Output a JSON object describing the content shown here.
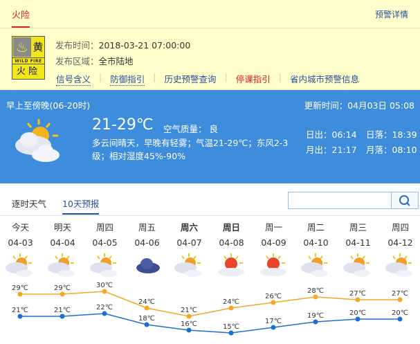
{
  "warning": {
    "tab": "火险",
    "detail_link": "预警详情",
    "badge": {
      "level": "黄",
      "en": "WILD FIRE",
      "name": "火险"
    },
    "publish_time_label": "发布时间：",
    "publish_time": "2018-03-21 07:00:00",
    "area_label": "发布区域：",
    "area": "全市陆地",
    "links": [
      "信号含义",
      "防御指引",
      "历史预警查询",
      "停课指引",
      "省内城市预警信息"
    ]
  },
  "current": {
    "period": "早上至傍晚(06-20时)",
    "update": "更新时间：04月03日 05:08",
    "temp": "21-29℃",
    "air_quality": "空气质量： 良",
    "description": "多云间晴天，早晚有轻雾；气温21-29℃；东风2-3级；相对湿度45%-90%",
    "sunrise": "日出：06:14",
    "sunset": "日落：18:39",
    "moonrise": "月出：21:17",
    "moonset": "月落：08:10",
    "icon": "partly-cloudy-icon"
  },
  "forecast_tabs": [
    "逐时天气",
    "10天预报"
  ],
  "search": {
    "placeholder": "",
    "icon": "search-icon"
  },
  "colors": {
    "high": "#f5a623",
    "low": "#1a6fd0",
    "blue_panel": "#3e8ddc",
    "warn_bg": "#ffffcc"
  },
  "chart_data": {
    "type": "line",
    "categories": [
      "04-03",
      "04-04",
      "04-05",
      "04-06",
      "04-07",
      "04-08",
      "04-09",
      "04-10",
      "04-11",
      "04-12"
    ],
    "series": [
      {
        "values": [
          29,
          29,
          30,
          24,
          21,
          24,
          26,
          28,
          27,
          27
        ]
      },
      {
        "values": [
          21,
          21,
          22,
          18,
          16,
          15,
          17,
          19,
          20,
          20
        ]
      }
    ],
    "unit": "℃"
  },
  "days": [
    {
      "name": "今天",
      "date": "04-03",
      "icon": "partly-cloudy"
    },
    {
      "name": "明天",
      "date": "04-04",
      "icon": "partly-cloudy"
    },
    {
      "name": "周四",
      "date": "04-05",
      "icon": "partly-cloudy"
    },
    {
      "name": "周五",
      "date": "04-06",
      "icon": "cloudy"
    },
    {
      "name": "周六",
      "date": "04-07",
      "icon": "partly-cloudy"
    },
    {
      "name": "周日",
      "date": "04-08",
      "icon": "sunny-cloud"
    },
    {
      "name": "周一",
      "date": "04-09",
      "icon": "sunny-cloud"
    },
    {
      "name": "周二",
      "date": "04-10",
      "icon": "partly-cloudy"
    },
    {
      "name": "周三",
      "date": "04-11",
      "icon": "partly-cloudy"
    },
    {
      "name": "周四",
      "date": "04-12",
      "icon": "partly-cloudy"
    }
  ]
}
